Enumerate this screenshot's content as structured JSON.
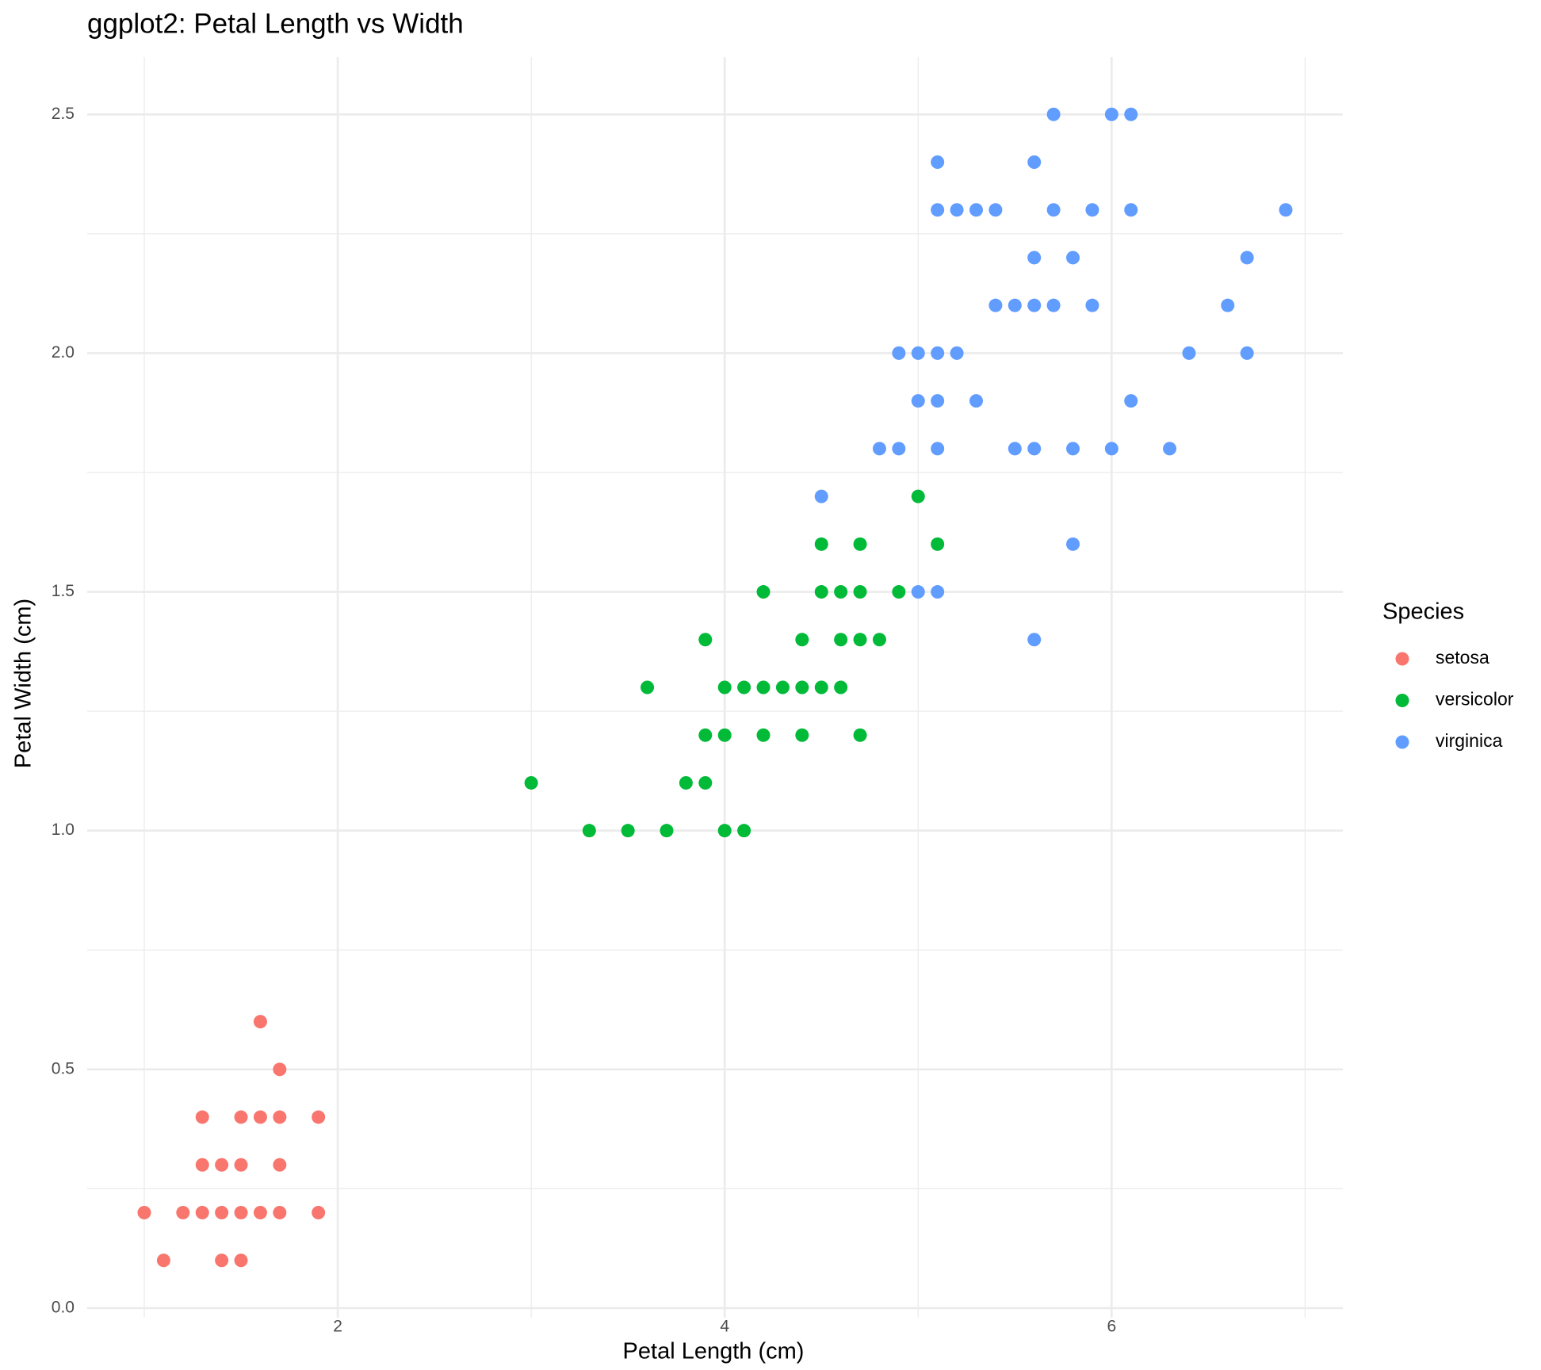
{
  "chart_data": {
    "type": "scatter",
    "title": "ggplot2: Petal Length vs Width",
    "x_label": "Petal Length (cm)",
    "y_label": "Petal Width (cm)",
    "legend_title": "Species",
    "xlim": [
      0.705,
      7.195
    ],
    "ylim": [
      -0.02,
      2.62
    ],
    "xticks": [
      2,
      4,
      6
    ],
    "x_minor_ticks": [
      1,
      3,
      5,
      7
    ],
    "yticks": [
      {
        "value": 0,
        "label": "0.0"
      },
      {
        "value": 0.5,
        "label": "0.5"
      },
      {
        "value": 1,
        "label": "1.0"
      },
      {
        "value": 1.5,
        "label": "1.5"
      },
      {
        "value": 2,
        "label": "2.0"
      },
      {
        "value": 2.5,
        "label": "2.5"
      }
    ],
    "y_minor_ticks": [
      0.25,
      0.75,
      1.25,
      1.75,
      2.25
    ],
    "grid": true,
    "legend": "right",
    "series": [
      {
        "name": "setosa",
        "color": "#F8766D",
        "x": [
          1.0,
          1.2,
          1.3,
          1.4,
          1.5,
          1.6,
          1.7,
          1.9,
          1.1,
          1.4,
          1.5,
          1.3,
          1.4,
          1.5,
          1.7,
          1.3,
          1.5,
          1.6,
          1.7,
          1.9,
          1.7,
          1.6
        ],
        "values": [
          0.2,
          0.2,
          0.2,
          0.2,
          0.2,
          0.2,
          0.2,
          0.2,
          0.1,
          0.1,
          0.1,
          0.3,
          0.3,
          0.3,
          0.3,
          0.4,
          0.4,
          0.4,
          0.4,
          0.4,
          0.5,
          0.6
        ]
      },
      {
        "name": "versicolor",
        "color": "#00BA38",
        "x": [
          3.3,
          3.5,
          3.7,
          4.0,
          4.1,
          3.0,
          3.8,
          3.9,
          3.9,
          4.0,
          4.2,
          4.4,
          4.7,
          3.6,
          4.0,
          4.1,
          4.2,
          4.3,
          4.4,
          4.5,
          4.6,
          3.9,
          4.4,
          4.6,
          4.7,
          4.8,
          4.2,
          4.5,
          4.6,
          4.7,
          4.9,
          4.5,
          4.7,
          5.1,
          5.0
        ],
        "values": [
          1.0,
          1.0,
          1.0,
          1.0,
          1.0,
          1.1,
          1.1,
          1.1,
          1.2,
          1.2,
          1.2,
          1.2,
          1.2,
          1.3,
          1.3,
          1.3,
          1.3,
          1.3,
          1.3,
          1.3,
          1.3,
          1.4,
          1.4,
          1.4,
          1.4,
          1.4,
          1.5,
          1.5,
          1.5,
          1.5,
          1.5,
          1.6,
          1.6,
          1.6,
          1.7
        ]
      },
      {
        "name": "virginica",
        "color": "#619CFF",
        "x": [
          5.6,
          5.0,
          5.1,
          5.8,
          4.5,
          4.8,
          4.9,
          5.1,
          5.5,
          5.6,
          5.8,
          6.0,
          6.3,
          5.0,
          5.1,
          5.3,
          6.1,
          4.9,
          5.0,
          5.1,
          5.2,
          6.4,
          6.7,
          5.4,
          5.5,
          5.6,
          5.7,
          5.9,
          6.6,
          5.6,
          5.8,
          6.7,
          5.1,
          5.2,
          5.3,
          5.4,
          5.7,
          5.9,
          6.1,
          6.9,
          5.1,
          5.6,
          5.7,
          6.0,
          6.1
        ],
        "values": [
          1.4,
          1.5,
          1.5,
          1.6,
          1.7,
          1.8,
          1.8,
          1.8,
          1.8,
          1.8,
          1.8,
          1.8,
          1.8,
          1.9,
          1.9,
          1.9,
          1.9,
          2.0,
          2.0,
          2.0,
          2.0,
          2.0,
          2.0,
          2.1,
          2.1,
          2.1,
          2.1,
          2.1,
          2.1,
          2.2,
          2.2,
          2.2,
          2.3,
          2.3,
          2.3,
          2.3,
          2.3,
          2.3,
          2.3,
          2.3,
          2.4,
          2.4,
          2.5,
          2.5,
          2.5
        ]
      }
    ]
  }
}
